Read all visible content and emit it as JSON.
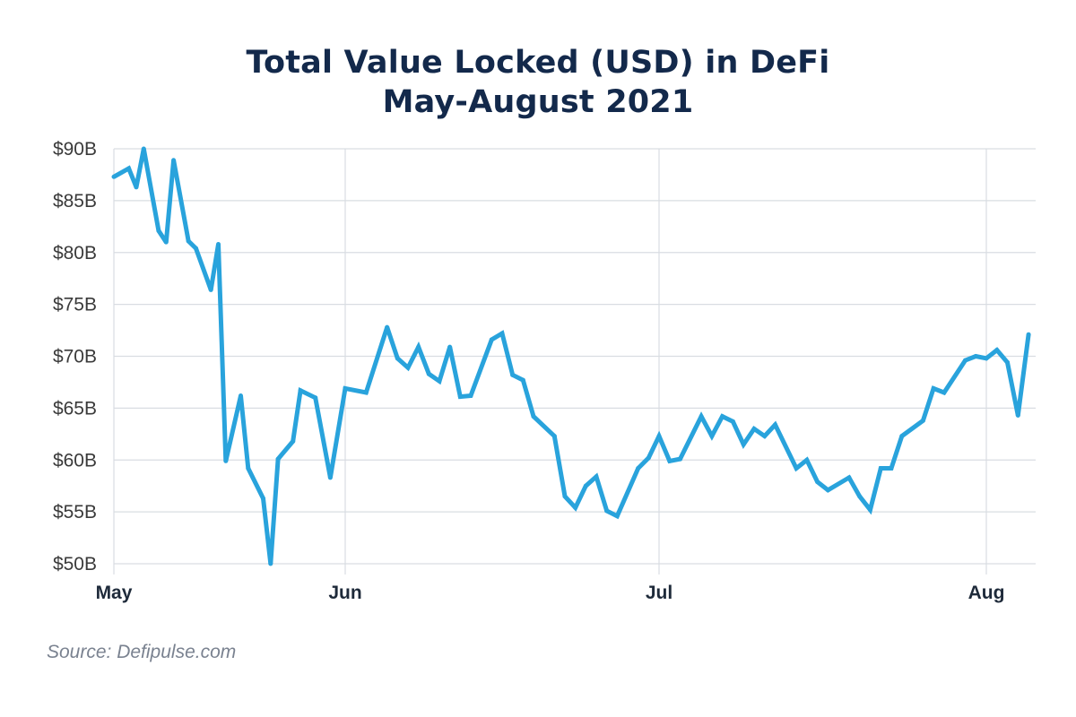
{
  "chart_data": {
    "type": "line",
    "title": "Total Value Locked (USD) in DeFi",
    "subtitle": "May-August 2021",
    "xlabel": "",
    "ylabel": "",
    "ylim": [
      50,
      90
    ],
    "yticks": [
      50,
      55,
      60,
      65,
      70,
      75,
      80,
      85,
      90
    ],
    "ytick_labels": [
      "$50B",
      "$55B",
      "$60B",
      "$65B",
      "$70B",
      "$75B",
      "$80B",
      "$85B",
      "$90B"
    ],
    "xticks": [
      {
        "label": "May",
        "date": "2021-05-01"
      },
      {
        "label": "Jun",
        "date": "2021-06-01"
      },
      {
        "label": "Jul",
        "date": "2021-07-01"
      },
      {
        "label": "Aug",
        "date": "2021-08-01"
      }
    ],
    "grid": true,
    "line_color": "#29a3dc",
    "unit": "USD billions",
    "series": [
      {
        "points": [
          [
            "2021-05-01",
            87.3
          ],
          [
            "2021-05-03",
            88.1
          ],
          [
            "2021-05-04",
            86.3
          ],
          [
            "2021-05-05",
            90.0
          ],
          [
            "2021-05-07",
            82.1
          ],
          [
            "2021-05-08",
            81.0
          ],
          [
            "2021-05-09",
            88.9
          ],
          [
            "2021-05-11",
            81.1
          ],
          [
            "2021-05-12",
            80.4
          ],
          [
            "2021-05-14",
            76.4
          ],
          [
            "2021-05-15",
            80.8
          ],
          [
            "2021-05-16",
            59.9
          ],
          [
            "2021-05-18",
            66.2
          ],
          [
            "2021-05-19",
            59.2
          ],
          [
            "2021-05-21",
            56.3
          ],
          [
            "2021-05-22",
            50.0
          ],
          [
            "2021-05-23",
            60.1
          ],
          [
            "2021-05-25",
            61.8
          ],
          [
            "2021-05-26",
            66.7
          ],
          [
            "2021-05-28",
            66.0
          ],
          [
            "2021-05-30",
            58.3
          ],
          [
            "2021-06-01",
            66.9
          ],
          [
            "2021-06-03",
            66.5
          ],
          [
            "2021-06-05",
            72.8
          ],
          [
            "2021-06-06",
            69.8
          ],
          [
            "2021-06-07",
            68.9
          ],
          [
            "2021-06-08",
            70.9
          ],
          [
            "2021-06-09",
            68.3
          ],
          [
            "2021-06-10",
            67.6
          ],
          [
            "2021-06-11",
            70.9
          ],
          [
            "2021-06-12",
            66.1
          ],
          [
            "2021-06-13",
            66.2
          ],
          [
            "2021-06-15",
            71.6
          ],
          [
            "2021-06-16",
            72.2
          ],
          [
            "2021-06-17",
            68.2
          ],
          [
            "2021-06-18",
            67.7
          ],
          [
            "2021-06-19",
            64.2
          ],
          [
            "2021-06-21",
            62.3
          ],
          [
            "2021-06-22",
            56.5
          ],
          [
            "2021-06-23",
            55.4
          ],
          [
            "2021-06-24",
            57.5
          ],
          [
            "2021-06-25",
            58.4
          ],
          [
            "2021-06-26",
            55.1
          ],
          [
            "2021-06-27",
            54.6
          ],
          [
            "2021-06-29",
            59.2
          ],
          [
            "2021-06-30",
            60.2
          ],
          [
            "2021-07-01",
            62.3
          ],
          [
            "2021-07-02",
            59.9
          ],
          [
            "2021-07-03",
            60.1
          ],
          [
            "2021-07-05",
            64.2
          ],
          [
            "2021-07-06",
            62.3
          ],
          [
            "2021-07-07",
            64.2
          ],
          [
            "2021-07-08",
            63.7
          ],
          [
            "2021-07-09",
            61.5
          ],
          [
            "2021-07-10",
            63.0
          ],
          [
            "2021-07-11",
            62.3
          ],
          [
            "2021-07-12",
            63.4
          ],
          [
            "2021-07-14",
            59.2
          ],
          [
            "2021-07-15",
            60.0
          ],
          [
            "2021-07-16",
            57.9
          ],
          [
            "2021-07-17",
            57.1
          ],
          [
            "2021-07-19",
            58.3
          ],
          [
            "2021-07-20",
            56.5
          ],
          [
            "2021-07-21",
            55.2
          ],
          [
            "2021-07-22",
            59.2
          ],
          [
            "2021-07-23",
            59.2
          ],
          [
            "2021-07-24",
            62.3
          ],
          [
            "2021-07-26",
            63.8
          ],
          [
            "2021-07-27",
            66.9
          ],
          [
            "2021-07-28",
            66.5
          ],
          [
            "2021-07-30",
            69.6
          ],
          [
            "2021-07-31",
            70.0
          ],
          [
            "2021-08-01",
            69.8
          ],
          [
            "2021-08-02",
            70.6
          ],
          [
            "2021-08-03",
            69.4
          ],
          [
            "2021-08-04",
            64.3
          ],
          [
            "2021-08-05",
            72.1
          ]
        ]
      }
    ]
  },
  "source": "Source: Defipulse.com"
}
